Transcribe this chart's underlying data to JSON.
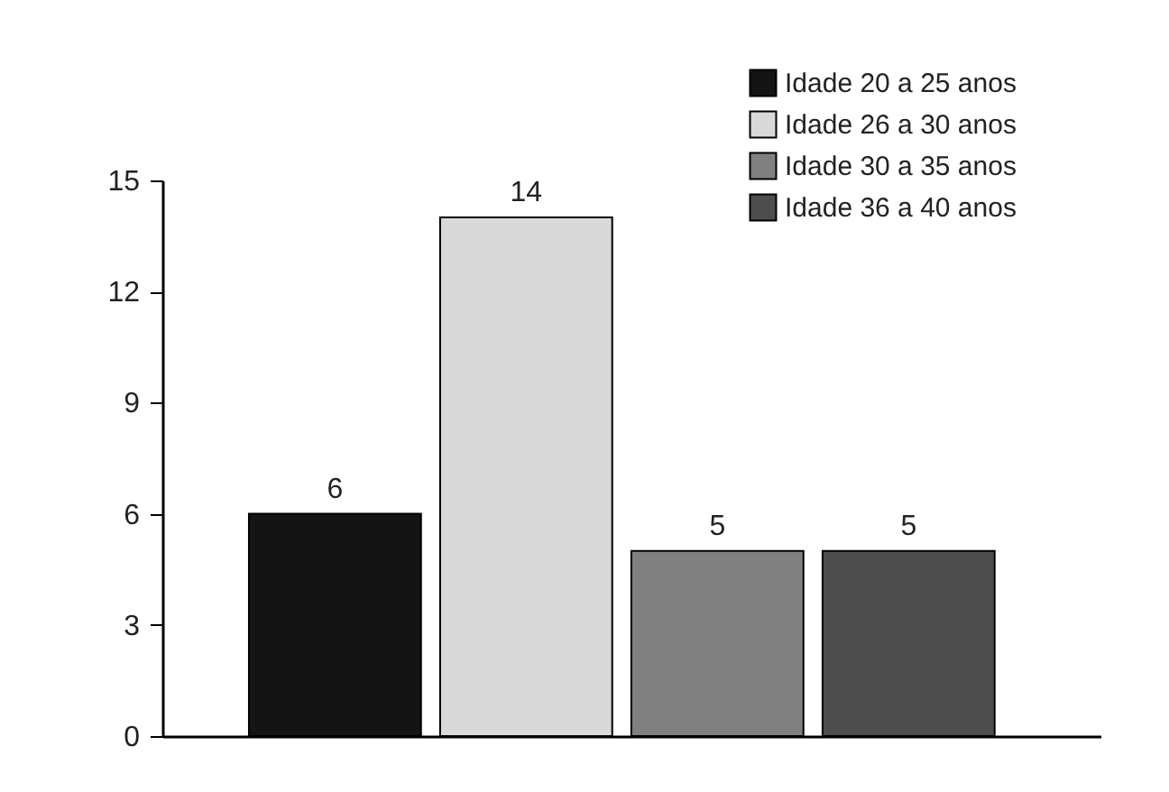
{
  "chart_data": {
    "type": "bar",
    "categories": [
      null,
      null,
      null,
      null
    ],
    "series": [
      {
        "name": "Idade 20 a 25 anos",
        "color": "#141414",
        "values": [
          6,
          null,
          null,
          null
        ]
      },
      {
        "name": "Idade 26 a 30 anos",
        "color": "#d9d9d9",
        "values": [
          null,
          14,
          null,
          null
        ]
      },
      {
        "name": "Idade 30 a 35 anos",
        "color": "#808080",
        "values": [
          null,
          null,
          5,
          null
        ]
      },
      {
        "name": "Idade 36 a 40 anos",
        "color": "#4d4d4d",
        "values": [
          null,
          null,
          null,
          5
        ]
      }
    ],
    "ylim": [
      0,
      15
    ],
    "yticks": [
      0,
      3,
      6,
      9,
      12,
      15
    ],
    "data_labels": true,
    "legend": "top right"
  }
}
